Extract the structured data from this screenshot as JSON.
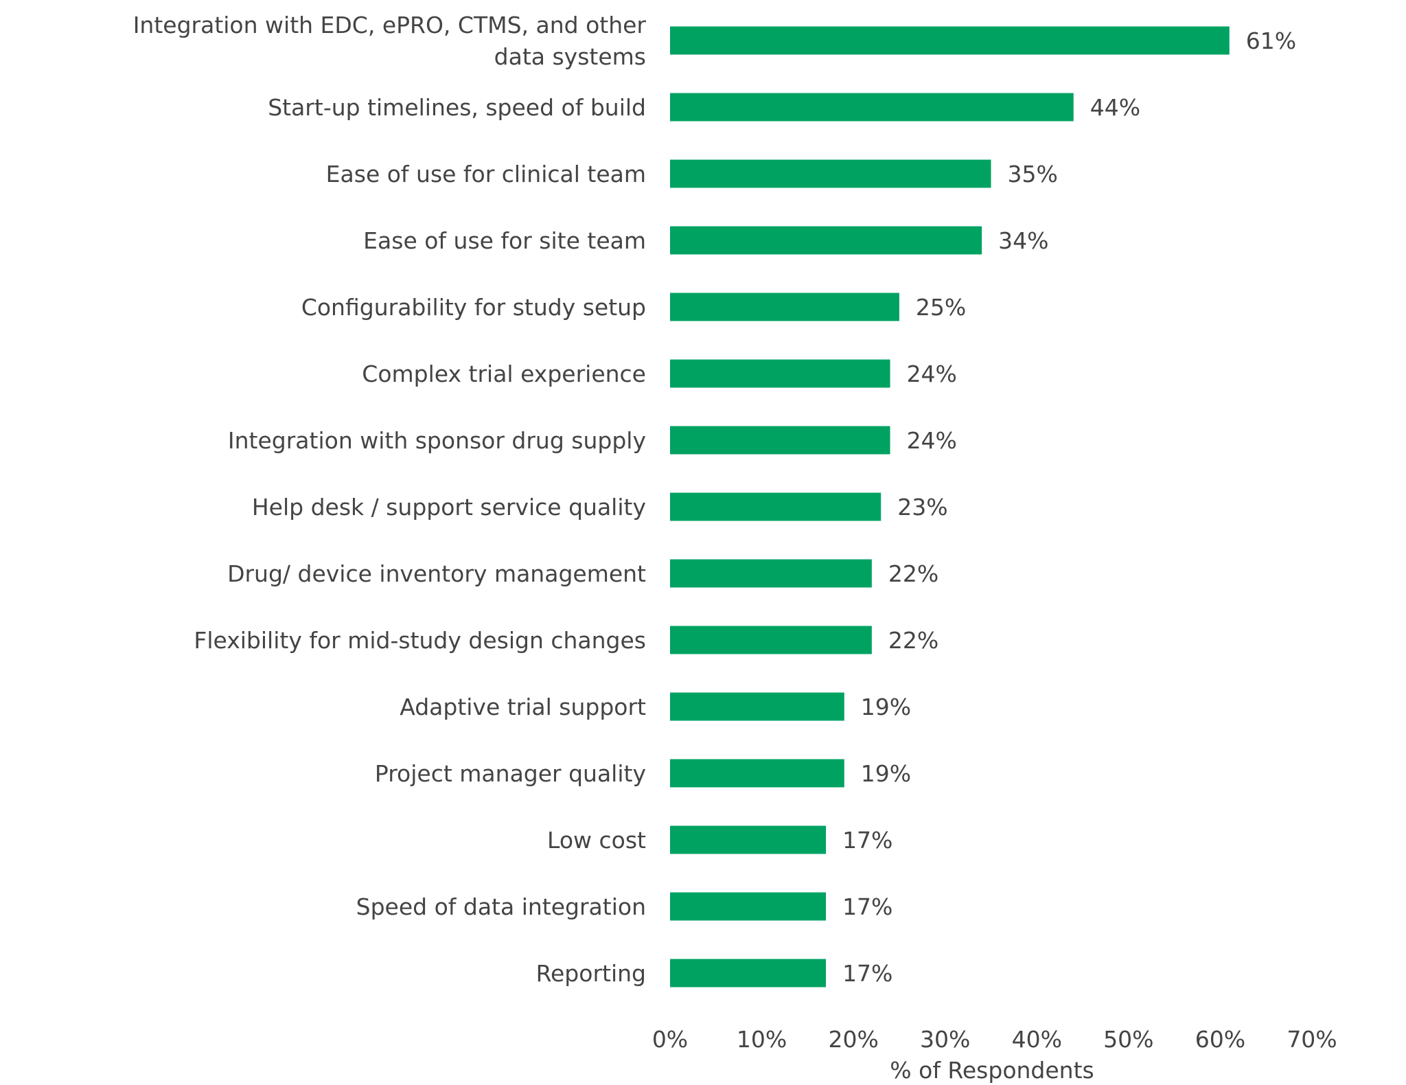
{
  "chart_data": {
    "type": "bar",
    "orientation": "horizontal",
    "categories": [
      [
        "Integration with EDC, ePRO, CTMS, and other",
        "data systems"
      ],
      [
        "Start-up timelines, speed of build"
      ],
      [
        "Ease of use for clinical team"
      ],
      [
        "Ease of use for site team"
      ],
      [
        "Configurability for study setup"
      ],
      [
        "Complex trial experience"
      ],
      [
        "Integration with sponsor drug supply"
      ],
      [
        "Help desk / support service quality"
      ],
      [
        "Drug/ device inventory management"
      ],
      [
        "Flexibility for mid-study design changes"
      ],
      [
        "Adaptive trial support"
      ],
      [
        "Project manager quality"
      ],
      [
        "Low cost"
      ],
      [
        "Speed of data integration"
      ],
      [
        "Reporting"
      ]
    ],
    "values": [
      61,
      44,
      35,
      34,
      25,
      24,
      24,
      23,
      22,
      22,
      19,
      19,
      17,
      17,
      17
    ],
    "data_labels": [
      "61%",
      "44%",
      "35%",
      "34%",
      "25%",
      "24%",
      "24%",
      "23%",
      "22%",
      "22%",
      "19%",
      "19%",
      "17%",
      "17%",
      "17%"
    ],
    "xlabel": "% of Respondents",
    "ylabel": "",
    "xlim": [
      0,
      70
    ],
    "xticks": [
      "0%",
      "10%",
      "20%",
      "30%",
      "40%",
      "50%",
      "60%",
      "70%"
    ],
    "grid": false,
    "bar_color": "#00a262"
  }
}
